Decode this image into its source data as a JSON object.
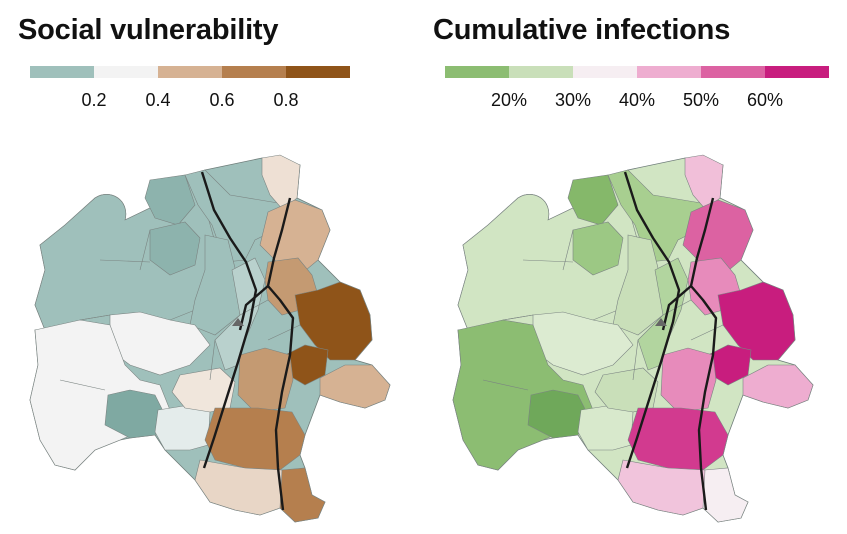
{
  "maps": [
    {
      "id": "svi",
      "title": "Social vulnerability",
      "legend": {
        "colors": [
          "#9fc0bb",
          "#f3f3f3",
          "#d6b293",
          "#b57f4e",
          "#8f5419"
        ],
        "ticks": [
          "0.2",
          "0.4",
          "0.6",
          "0.8"
        ]
      },
      "region_colors": {
        "north_strip": "#9fc0bb",
        "ne_tip": "#eee0d4",
        "west_large": "#9fc0bb",
        "north_dark": "#8db3ad",
        "center_dark": "#8db3ad",
        "center_west": "#9fc0bb",
        "west_light": "#f3f3f3",
        "sw_light": "#f3f3f3",
        "sw_dark": "#7fa9a2",
        "south_mid": "#f0e6dc",
        "south_light": "#e4eceb",
        "corridor": "#b9d1cd",
        "east_top": "#d6b293",
        "east_mid": "#c49a72",
        "east_dark": "#8f5419",
        "east_spot": "#8f5419",
        "east_lower": "#c49a72",
        "east_tail": "#d6b293",
        "south_core": "#b57f4e",
        "south_tail": "#e8d6c6",
        "south_end": "#b57f4e"
      }
    },
    {
      "id": "inf",
      "title": "Cumulative infections",
      "legend": {
        "colors": [
          "#8cbd72",
          "#c9dfb9",
          "#f6eef2",
          "#eeadd0",
          "#dc62a2",
          "#c81d7e"
        ],
        "ticks": [
          "20%",
          "30%",
          "40%",
          "50%",
          "60%"
        ]
      },
      "region_colors": {
        "north_strip": "#a8cf90",
        "ne_tip": "#f1bfd9",
        "west_large": "#d1e5c3",
        "north_dark": "#85b86a",
        "center_dark": "#9cc884",
        "center_west": "#c9dfb9",
        "west_light": "#dcebd1",
        "sw_light": "#8cbd72",
        "sw_dark": "#6fa85a",
        "south_mid": "#c9dfb9",
        "south_light": "#d8e9cc",
        "corridor": "#b2d59f",
        "east_top": "#dc62a2",
        "east_mid": "#e78bbb",
        "east_dark": "#c81d7e",
        "east_spot": "#c81d7e",
        "east_lower": "#e78bbb",
        "east_tail": "#eeadd0",
        "south_core": "#d23a8f",
        "south_tail": "#f1c4dc",
        "south_end": "#f6eef2"
      }
    }
  ]
}
